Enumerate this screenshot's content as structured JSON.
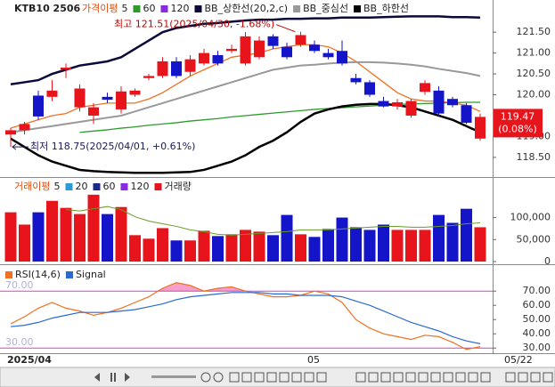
{
  "header": {
    "symbol": "KTB10 2506"
  },
  "chart_data": [
    {
      "type": "candlestick",
      "legend_title": "가격이평",
      "open": [
        119.05,
        119.15,
        119.98,
        119.95,
        120.6,
        119.7,
        119.5,
        119.95,
        119.65,
        120.0,
        120.4,
        120.45,
        120.8,
        120.55,
        120.75,
        120.95,
        121.05,
        120.75,
        120.9,
        121.4,
        121.15,
        121.2,
        121.2,
        121.0,
        121.05,
        120.4,
        120.3,
        119.85,
        119.72,
        119.5,
        120.07,
        120.1,
        119.9,
        119.75,
        118.95
      ],
      "high": [
        119.2,
        119.35,
        120.1,
        120.35,
        120.75,
        120.25,
        119.8,
        120.05,
        120.2,
        120.15,
        120.5,
        120.9,
        120.9,
        120.95,
        121.1,
        121.05,
        121.2,
        121.5,
        121.4,
        121.45,
        121.25,
        121.51,
        121.3,
        121.1,
        121.3,
        120.5,
        120.35,
        119.95,
        119.9,
        119.9,
        120.35,
        120.2,
        119.95,
        119.8,
        119.55
      ],
      "low": [
        118.75,
        119.05,
        119.4,
        119.85,
        120.4,
        119.6,
        119.3,
        119.8,
        119.55,
        119.95,
        120.35,
        120.4,
        120.4,
        120.45,
        120.7,
        120.7,
        121.0,
        120.7,
        120.85,
        121.1,
        120.85,
        121.15,
        121.0,
        120.85,
        120.7,
        120.25,
        119.95,
        119.7,
        119.65,
        119.45,
        120.0,
        119.5,
        119.7,
        119.3,
        118.9
      ],
      "close": [
        119.15,
        119.3,
        119.48,
        120.1,
        120.65,
        120.15,
        119.7,
        119.88,
        120.08,
        120.1,
        120.45,
        120.8,
        120.45,
        120.85,
        121.0,
        120.75,
        121.1,
        121.4,
        121.3,
        121.17,
        120.9,
        121.43,
        121.05,
        120.9,
        120.75,
        120.3,
        120.0,
        119.72,
        119.82,
        119.85,
        120.28,
        119.55,
        119.75,
        119.33,
        119.47
      ],
      "up_color": "#e8141c",
      "down_color": "#1414c8",
      "series": [
        {
          "name": "5",
          "color": "#f07020",
          "values": [
            119.2,
            119.3,
            119.4,
            119.5,
            119.55,
            119.7,
            119.75,
            119.8,
            119.8,
            119.8,
            119.9,
            120.05,
            120.25,
            120.45,
            120.6,
            120.75,
            120.9,
            120.95,
            121.0,
            121.1,
            121.15,
            121.2,
            121.2,
            121.15,
            121.0,
            120.8,
            120.55,
            120.3,
            120.05,
            119.9,
            119.85,
            119.85,
            119.8,
            119.75,
            119.6
          ]
        },
        {
          "name": "60",
          "color": "#2e9a2e",
          "values": [
            null,
            null,
            null,
            null,
            null,
            119.1,
            119.13,
            119.16,
            119.2,
            119.23,
            119.27,
            119.3,
            119.33,
            119.37,
            119.4,
            119.43,
            119.47,
            119.5,
            119.53,
            119.56,
            119.59,
            119.62,
            119.65,
            119.67,
            119.69,
            119.71,
            119.73,
            119.75,
            119.77,
            119.78,
            119.79,
            119.8,
            119.81,
            119.82,
            119.82
          ]
        },
        {
          "name": "120",
          "color": "#8a2be2",
          "values": [
            null,
            null,
            null,
            null,
            null,
            null,
            null,
            null,
            null,
            null,
            null,
            null,
            null,
            null,
            null,
            null,
            null,
            null,
            null,
            null,
            null,
            null,
            null,
            null,
            null,
            null,
            null,
            null,
            null,
            null,
            null,
            null,
            null,
            null,
            null
          ]
        },
        {
          "name": "BB_상한선(20,2,c)",
          "color": "#0a0a3a",
          "width": 2.5,
          "values": [
            120.25,
            120.3,
            120.35,
            120.5,
            120.6,
            120.7,
            120.75,
            120.8,
            120.9,
            121.1,
            121.3,
            121.5,
            121.6,
            121.65,
            121.7,
            121.72,
            121.75,
            121.78,
            121.8,
            121.8,
            121.82,
            121.82,
            121.83,
            121.83,
            121.85,
            121.85,
            121.85,
            121.86,
            121.87,
            121.88,
            121.88,
            121.88,
            121.86,
            121.86,
            121.85
          ]
        },
        {
          "name": "BB_중심선",
          "color": "#999999",
          "width": 2,
          "values": [
            119.1,
            119.15,
            119.2,
            119.25,
            119.3,
            119.35,
            119.4,
            119.45,
            119.5,
            119.6,
            119.7,
            119.8,
            119.9,
            120.0,
            120.1,
            120.2,
            120.3,
            120.4,
            120.5,
            120.6,
            120.65,
            120.7,
            120.72,
            120.75,
            120.77,
            120.78,
            120.78,
            120.77,
            120.75,
            120.72,
            120.68,
            120.62,
            120.57,
            120.52,
            120.45
          ]
        },
        {
          "name": "BB_하한선",
          "color": "#000000",
          "width": 2.5,
          "values": [
            118.95,
            118.75,
            118.55,
            118.4,
            118.3,
            118.2,
            118.17,
            118.15,
            118.14,
            118.13,
            118.13,
            118.13,
            118.14,
            118.15,
            118.2,
            118.3,
            118.4,
            118.55,
            118.75,
            118.9,
            119.1,
            119.35,
            119.55,
            119.65,
            119.72,
            119.76,
            119.78,
            119.78,
            119.75,
            119.7,
            119.6,
            119.5,
            119.4,
            119.25,
            119.1
          ]
        }
      ],
      "ylim": [
        118.05,
        122.1
      ],
      "yticks": [
        {
          "value": 118.5,
          "label": "118.50"
        },
        {
          "value": 119,
          "label": "119.00"
        },
        {
          "value": 120,
          "label": "120.00"
        },
        {
          "value": 120.5,
          "label": "120.50"
        },
        {
          "value": 121,
          "label": "121.00"
        },
        {
          "value": 121.5,
          "label": "121.50"
        }
      ],
      "high_point": {
        "index": 21,
        "value": 121.51,
        "label": "최고 121.51(2025/04/30, -1.68%)"
      },
      "low_point": {
        "index": 0,
        "value": 118.75,
        "label": "최저 118.75(2025/04/01, +0.61%)"
      },
      "last_price": 119.47,
      "last_change": 0.08,
      "last_change_label": "(0.08%)"
    },
    {
      "type": "bar",
      "legend_title": "거래이평",
      "values": [
        112000,
        84000,
        112000,
        138000,
        122000,
        108000,
        152000,
        108000,
        124000,
        60000,
        52000,
        76000,
        48000,
        48000,
        70000,
        58000,
        62000,
        72000,
        68000,
        60000,
        106000,
        62000,
        56000,
        74000,
        100000,
        78000,
        72000,
        84000,
        72000,
        72000,
        72000,
        106000,
        88000,
        120000,
        78000
      ],
      "series": [
        {
          "name": "5",
          "color": "#6a9a2a",
          "values": [
            null,
            null,
            null,
            null,
            118000,
            115000,
            120000,
            125000,
            118000,
            102000,
            92000,
            86000,
            80000,
            72000,
            68000,
            62000,
            60000,
            62000,
            64000,
            66000,
            68000,
            72000,
            72000,
            72000,
            74000,
            76000,
            78000,
            80000,
            80000,
            78000,
            78000,
            80000,
            82000,
            86000,
            88000
          ]
        },
        {
          "name": "20",
          "color": "#2a9ad8",
          "values": [
            null,
            null,
            null,
            null,
            null,
            null,
            null,
            null,
            null,
            null,
            null,
            null,
            null,
            null,
            null,
            null,
            null,
            null,
            null,
            null,
            null,
            null,
            null,
            null,
            null,
            null,
            null,
            null,
            null,
            null,
            null,
            null,
            null,
            null,
            null
          ]
        },
        {
          "name": "60",
          "color": "#1a2a8a",
          "values": [
            null,
            null,
            null,
            null,
            null,
            null,
            null,
            null,
            null,
            null,
            null,
            null,
            null,
            null,
            null,
            null,
            null,
            null,
            null,
            null,
            null,
            null,
            null,
            null,
            null,
            null,
            null,
            null,
            null,
            null,
            null,
            null,
            null,
            null,
            null
          ]
        },
        {
          "name": "120",
          "color": "#8a2be2",
          "values": [
            null,
            null,
            null,
            null,
            null,
            null,
            null,
            null,
            null,
            null,
            null,
            null,
            null,
            null,
            null,
            null,
            null,
            null,
            null,
            null,
            null,
            null,
            null,
            null,
            null,
            null,
            null,
            null,
            null,
            null,
            null,
            null,
            null,
            null,
            null
          ]
        }
      ],
      "bar_name": "거래량",
      "bar_color": "#e8141c",
      "ylim": [
        0,
        180000
      ],
      "yticks": [
        0,
        {
          "value": 50000,
          "label": "50,000"
        },
        {
          "value": 100000,
          "label": "100,000"
        }
      ]
    },
    {
      "type": "line",
      "series": [
        {
          "name": "RSI(14,6)",
          "color": "#f07020",
          "values": [
            47,
            52,
            58,
            62,
            58,
            56,
            53,
            55,
            58,
            62,
            66,
            72,
            76,
            74,
            70,
            72,
            73,
            70,
            68,
            66,
            66,
            67,
            70,
            68,
            62,
            50,
            44,
            40,
            38,
            36,
            39,
            38,
            34,
            29,
            31
          ]
        },
        {
          "name": "Signal",
          "color": "#2a6ad0",
          "values": [
            45,
            46,
            48,
            51,
            53,
            55,
            55,
            55,
            56,
            57,
            59,
            61,
            64,
            66,
            67,
            68,
            69,
            69,
            69,
            68,
            68,
            67,
            67,
            67,
            66,
            63,
            60,
            56,
            52,
            48,
            45,
            42,
            38,
            35,
            33
          ]
        }
      ],
      "levels": [
        {
          "value": 70,
          "label": "70.00"
        },
        {
          "value": 30,
          "label": "30.00"
        }
      ],
      "level_color": "#d040d0",
      "fill_color": "#f4a0c8",
      "ylim": [
        27,
        87
      ],
      "yticks": [
        {
          "value": 30,
          "label": "30.00"
        },
        {
          "value": 40,
          "label": "40.00"
        },
        {
          "value": 50,
          "label": "50.00"
        },
        {
          "value": 60,
          "label": "60.00"
        },
        {
          "value": 70,
          "label": "70.00"
        }
      ]
    }
  ],
  "x_axis": {
    "start": "2025/04",
    "mid": "05",
    "end": "05/22"
  }
}
